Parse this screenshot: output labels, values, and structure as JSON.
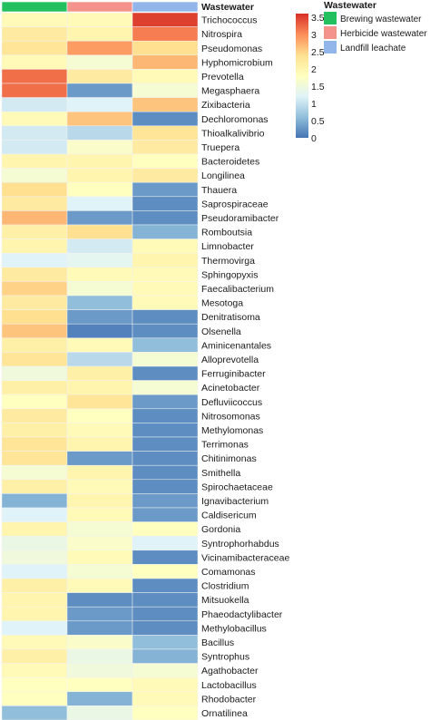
{
  "chart_data": {
    "type": "heatmap",
    "annotation_label": "Wastewater",
    "columns": [
      "Brewing wastewater",
      "Herbicide wastewater",
      "Landfill leachate"
    ],
    "annotation_colors": [
      "#22c05e",
      "#f4938c",
      "#92b5ea"
    ],
    "legend_title": "Wastewater",
    "colorbar": {
      "min": 0,
      "max": 3.6,
      "ticks": [
        0,
        0.5,
        1,
        1.5,
        2,
        2.5,
        3,
        3.5
      ],
      "tick_labels": [
        "0",
        "0.5",
        "1",
        "1.5",
        "2",
        "2.5",
        "3",
        "3.5"
      ],
      "colors": [
        "#4575b4",
        "#91bfdb",
        "#e0f3f8",
        "#ffffbf",
        "#fee090",
        "#fc8d59",
        "#d73027"
      ]
    },
    "rows": [
      "Trichococcus",
      "Nitrospira",
      "Pseudomonas",
      "Hyphomicrobium",
      "Prevotella",
      "Megasphaera",
      "Zixibacteria",
      "Dechloromonas",
      "Thioalkalivibrio",
      "Truepera",
      "Bacteroidetes",
      "Longilinea",
      "Thauera",
      "Saprospiraceae",
      "Pseudoramibacter",
      "Romboutsia",
      "Limnobacter",
      "Thermovirga",
      "Sphingopyxis",
      "Faecalibacterium",
      "Mesotoga",
      "Denitratisoma",
      "Olsenella",
      "Aminicenantales",
      "Alloprevotella",
      "Ferruginibacter",
      "Acinetobacter",
      "Defluviicoccus",
      "Nitrosomonas",
      "Methylomonas",
      "Terrimonas",
      "Chitinimonas",
      "Smithella",
      "Spirochaetaceae",
      "Ignavibacterium",
      "Caldisericum",
      "Gordonia",
      "Syntrophorhabdus",
      "Vicinamibacteraceae",
      "Comamonas",
      "Clostridium",
      "Mitsuokella",
      "Phaeodactylibacter",
      "Methylobacillus",
      "Bacillus",
      "Syntrophus",
      "Agathobacter",
      "Lactobacillus",
      "Rhodobacter",
      "Ornatilinea"
    ],
    "values": [
      [
        1.9,
        1.9,
        3.5
      ],
      [
        2.2,
        2.0,
        3.1
      ],
      [
        2.3,
        2.9,
        2.4
      ],
      [
        1.9,
        1.6,
        2.7
      ],
      [
        3.2,
        2.2,
        1.9
      ],
      [
        3.2,
        0.3,
        1.6
      ],
      [
        1.1,
        1.2,
        2.6
      ],
      [
        1.9,
        2.6,
        0.2
      ],
      [
        1.1,
        0.9,
        2.3
      ],
      [
        1.1,
        1.7,
        2.2
      ],
      [
        2.0,
        2.0,
        1.8
      ],
      [
        1.6,
        2.0,
        2.2
      ],
      [
        2.4,
        1.8,
        0.3
      ],
      [
        2.2,
        1.2,
        0.2
      ],
      [
        2.7,
        0.3,
        0.2
      ],
      [
        2.1,
        2.4,
        0.5
      ],
      [
        2.0,
        1.1,
        1.9
      ],
      [
        1.2,
        1.3,
        2.0
      ],
      [
        2.2,
        1.9,
        1.9
      ],
      [
        2.5,
        1.6,
        1.9
      ],
      [
        2.2,
        0.6,
        1.9
      ],
      [
        2.4,
        0.3,
        0.2
      ],
      [
        2.6,
        0.1,
        0.2
      ],
      [
        2.1,
        1.9,
        0.6
      ],
      [
        2.3,
        0.9,
        1.6
      ],
      [
        1.5,
        2.1,
        0.2
      ],
      [
        2.1,
        2.0,
        1.6
      ],
      [
        1.8,
        2.3,
        0.3
      ],
      [
        2.2,
        1.8,
        0.2
      ],
      [
        2.1,
        1.9,
        0.2
      ],
      [
        2.3,
        2.0,
        0.2
      ],
      [
        2.3,
        0.3,
        0.2
      ],
      [
        1.6,
        2.0,
        0.2
      ],
      [
        2.1,
        1.9,
        0.2
      ],
      [
        0.5,
        2.0,
        0.3
      ],
      [
        1.2,
        1.9,
        0.3
      ],
      [
        2.0,
        1.6,
        1.8
      ],
      [
        1.4,
        1.7,
        1.2
      ],
      [
        1.5,
        1.9,
        0.2
      ],
      [
        1.2,
        1.6,
        1.8
      ],
      [
        2.1,
        1.9,
        0.2
      ],
      [
        2.0,
        0.2,
        0.2
      ],
      [
        2.0,
        0.3,
        0.2
      ],
      [
        1.2,
        0.3,
        0.2
      ],
      [
        1.9,
        1.7,
        0.6
      ],
      [
        2.1,
        1.4,
        0.5
      ],
      [
        1.9,
        1.5,
        1.6
      ],
      [
        1.8,
        1.8,
        1.9
      ],
      [
        1.8,
        0.5,
        1.9
      ],
      [
        0.6,
        1.4,
        1.8
      ]
    ]
  }
}
